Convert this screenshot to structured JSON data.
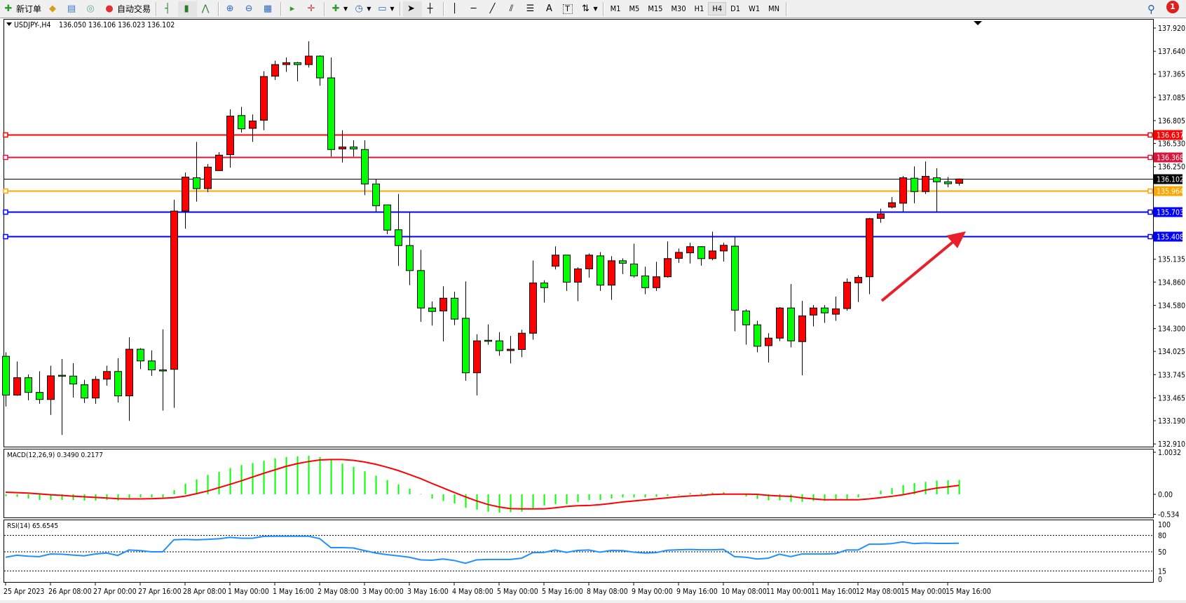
{
  "toolbar": {
    "new_order": "新订单",
    "auto_trading": "自动交易",
    "timeframes": [
      "M1",
      "M5",
      "M15",
      "M30",
      "H1",
      "H4",
      "D1",
      "W1",
      "MN"
    ],
    "active_timeframe": "H4",
    "notification_count": "1"
  },
  "chart": {
    "symbol": "USDJPY-,H4",
    "header_ohlc": "136.050 136.106 136.023 136.102",
    "macd_label": "MACD(12,26,9) 0.3490 0.2177",
    "rsi_label": "RSI(14) 65.6545",
    "colors": {
      "bull": "#ff0000",
      "bear": "#00ff00",
      "macd_hist": "#00ff00",
      "macd_signal": "#ff0000",
      "rsi": "#1e90ff"
    }
  },
  "chart_data": {
    "type": "candlestick",
    "timeframe": "H4",
    "price_ticks": [
      "137.920",
      "137.640",
      "137.365",
      "137.085",
      "136.805",
      "136.530",
      "136.250",
      "135.135",
      "134.860",
      "134.580",
      "134.300",
      "134.025",
      "133.745",
      "133.465",
      "133.190",
      "132.910"
    ],
    "price_range": [
      132.88,
      138.03
    ],
    "date_labels": [
      {
        "bar": 0,
        "text": "25 Apr 2023"
      },
      {
        "bar": 4,
        "text": "26 Apr 08:00"
      },
      {
        "bar": 8,
        "text": "27 Apr 00:00"
      },
      {
        "bar": 12,
        "text": "27 Apr 16:00"
      },
      {
        "bar": 16,
        "text": "28 Apr 08:00"
      },
      {
        "bar": 20,
        "text": "1 May 00:00"
      },
      {
        "bar": 24,
        "text": "1 May 16:00"
      },
      {
        "bar": 28,
        "text": "2 May 08:00"
      },
      {
        "bar": 32,
        "text": "3 May 00:00"
      },
      {
        "bar": 36,
        "text": "3 May 16:00"
      },
      {
        "bar": 40,
        "text": "4 May 08:00"
      },
      {
        "bar": 44,
        "text": "5 May 00:00"
      },
      {
        "bar": 48,
        "text": "5 May 16:00"
      },
      {
        "bar": 52,
        "text": "8 May 08:00"
      },
      {
        "bar": 56,
        "text": "9 May 00:00"
      },
      {
        "bar": 60,
        "text": "9 May 16:00"
      },
      {
        "bar": 64,
        "text": "10 May 08:00"
      },
      {
        "bar": 68,
        "text": "11 May 00:00"
      },
      {
        "bar": 72,
        "text": "11 May 16:00"
      },
      {
        "bar": 76,
        "text": "12 May 08:00"
      },
      {
        "bar": 80,
        "text": "15 May 00:00"
      },
      {
        "bar": 84,
        "text": "15 May 16:00"
      }
    ],
    "ohlc": [
      [
        133.966,
        134.015,
        133.361,
        133.499
      ],
      [
        133.499,
        133.904,
        133.49,
        133.708
      ],
      [
        133.708,
        133.747,
        133.436,
        133.531
      ],
      [
        133.531,
        133.786,
        133.394,
        133.446
      ],
      [
        133.446,
        133.852,
        133.26,
        133.731
      ],
      [
        133.738,
        133.933,
        133.018,
        133.728
      ],
      [
        133.728,
        133.884,
        133.469,
        133.632
      ],
      [
        133.623,
        133.682,
        133.404,
        133.463
      ],
      [
        133.463,
        133.727,
        133.394,
        133.688
      ],
      [
        133.691,
        133.852,
        133.613,
        133.783
      ],
      [
        133.783,
        133.943,
        133.41,
        133.489
      ],
      [
        133.489,
        134.195,
        133.188,
        134.051
      ],
      [
        134.051,
        134.064,
        133.812,
        133.91
      ],
      [
        133.91,
        134.038,
        133.73,
        133.802
      ],
      [
        133.802,
        134.29,
        133.312,
        133.8
      ],
      [
        133.809,
        135.852,
        133.345,
        135.715
      ],
      [
        135.715,
        136.179,
        135.503,
        136.124
      ],
      [
        136.117,
        136.549,
        135.83,
        135.986
      ],
      [
        135.986,
        136.281,
        135.944,
        136.245
      ],
      [
        136.203,
        136.425,
        136.203,
        136.389
      ],
      [
        136.395,
        136.941,
        136.238,
        136.859
      ],
      [
        136.866,
        136.97,
        136.66,
        136.706
      ],
      [
        136.712,
        136.879,
        136.549,
        136.8
      ],
      [
        136.81,
        137.399,
        136.689,
        137.336
      ],
      [
        137.34,
        137.526,
        137.294,
        137.48
      ],
      [
        137.48,
        137.565,
        137.392,
        137.503
      ],
      [
        137.503,
        137.513,
        137.278,
        137.48
      ],
      [
        137.48,
        137.761,
        137.444,
        137.582
      ],
      [
        137.582,
        137.591,
        137.225,
        137.32
      ],
      [
        137.32,
        137.565,
        136.372,
        136.457
      ],
      [
        136.464,
        136.689,
        136.3,
        136.487
      ],
      [
        136.487,
        136.568,
        136.372,
        136.464
      ],
      [
        136.457,
        136.568,
        135.908,
        136.042
      ],
      [
        136.042,
        136.101,
        135.708,
        135.78
      ],
      [
        135.79,
        135.79,
        135.437,
        135.486
      ],
      [
        135.49,
        135.921,
        135.055,
        135.3
      ],
      [
        135.3,
        135.695,
        134.823,
        134.999
      ],
      [
        134.999,
        135.248,
        134.381,
        134.548
      ],
      [
        134.548,
        134.626,
        134.336,
        134.506
      ],
      [
        134.512,
        134.81,
        134.146,
        134.666
      ],
      [
        134.666,
        134.744,
        134.342,
        134.414
      ],
      [
        134.424,
        134.868,
        133.672,
        133.767
      ],
      [
        133.767,
        134.231,
        133.495,
        134.152
      ],
      [
        134.159,
        134.349,
        134.106,
        134.155
      ],
      [
        134.152,
        134.257,
        133.973,
        134.035
      ],
      [
        134.035,
        134.211,
        133.881,
        134.051
      ],
      [
        134.048,
        134.286,
        133.956,
        134.244
      ],
      [
        134.244,
        135.12,
        134.166,
        134.849
      ],
      [
        134.849,
        134.882,
        134.613,
        134.793
      ],
      [
        135.051,
        135.29,
        135.012,
        135.185
      ],
      [
        135.185,
        135.185,
        134.754,
        134.859
      ],
      [
        134.859,
        135.038,
        134.63,
        135.019
      ],
      [
        135.019,
        135.205,
        134.914,
        135.185
      ],
      [
        135.176,
        135.221,
        134.754,
        134.823
      ],
      [
        134.823,
        135.172,
        134.646,
        135.117
      ],
      [
        135.117,
        135.146,
        134.957,
        135.087
      ],
      [
        135.078,
        135.323,
        134.914,
        134.934
      ],
      [
        134.934,
        135.045,
        134.715,
        134.793
      ],
      [
        134.793,
        135.104,
        134.754,
        134.924
      ],
      [
        134.924,
        135.349,
        134.914,
        135.143
      ],
      [
        135.146,
        135.264,
        135.091,
        135.218
      ],
      [
        135.212,
        135.333,
        135.084,
        135.287
      ],
      [
        135.287,
        135.293,
        135.058,
        135.143
      ],
      [
        135.143,
        135.467,
        135.123,
        135.235
      ],
      [
        135.235,
        135.333,
        135.107,
        135.303
      ],
      [
        135.293,
        135.404,
        134.267,
        134.522
      ],
      [
        134.512,
        134.532,
        134.107,
        134.345
      ],
      [
        134.345,
        134.394,
        134.015,
        134.087
      ],
      [
        134.094,
        134.244,
        133.891,
        134.185
      ],
      [
        134.185,
        134.558,
        134.149,
        134.548
      ],
      [
        134.548,
        134.836,
        134.074,
        134.152
      ],
      [
        134.143,
        134.633,
        133.737,
        134.453
      ],
      [
        134.463,
        134.584,
        134.326,
        134.548
      ],
      [
        134.548,
        134.584,
        134.368,
        134.489
      ],
      [
        134.473,
        134.685,
        134.394,
        134.538
      ],
      [
        134.541,
        134.904,
        134.515,
        134.859
      ],
      [
        134.852,
        134.943,
        134.62,
        134.917
      ],
      [
        134.924,
        135.633,
        134.715,
        135.624
      ],
      [
        135.627,
        135.744,
        135.574,
        135.682
      ],
      [
        135.764,
        135.885,
        135.748,
        135.816
      ],
      [
        135.81,
        136.137,
        135.708,
        136.117
      ],
      [
        136.111,
        136.254,
        135.81,
        135.95
      ],
      [
        135.95,
        136.313,
        135.921,
        136.134
      ],
      [
        136.117,
        136.232,
        135.708,
        136.068
      ],
      [
        136.068,
        136.127,
        136.003,
        136.045
      ],
      [
        136.05,
        136.106,
        136.023,
        136.102
      ]
    ],
    "horizontal_lines": [
      {
        "price": "136.637",
        "color": "#ff0000"
      },
      {
        "price": "136.368",
        "color": "#dc143c"
      },
      {
        "price": "135.964",
        "color": "#ffa500"
      },
      {
        "price": "135.703",
        "color": "#0000ff"
      },
      {
        "price": "135.408",
        "color": "#0000ff"
      }
    ],
    "bid": {
      "price": "136.102",
      "color": "#000000"
    },
    "annotation_arrow": {
      "color": "#e8202a",
      "direction": "up-right"
    },
    "macd": {
      "ticks": [
        "1.0032",
        "0.00",
        "-0.534"
      ],
      "range": [
        -0.57,
        1.1
      ],
      "histogram": [
        -0.045,
        -0.06,
        -0.1,
        -0.136,
        -0.136,
        -0.136,
        -0.136,
        -0.151,
        -0.151,
        -0.136,
        -0.151,
        -0.09,
        -0.075,
        -0.075,
        -0.075,
        0.101,
        0.256,
        0.362,
        0.472,
        0.543,
        0.638,
        0.709,
        0.759,
        0.814,
        0.874,
        0.905,
        0.92,
        0.935,
        0.905,
        0.834,
        0.744,
        0.668,
        0.558,
        0.452,
        0.347,
        0.241,
        0.136,
        0.01,
        -0.101,
        -0.161,
        -0.221,
        -0.327,
        -0.372,
        -0.422,
        -0.442,
        -0.432,
        -0.422,
        -0.352,
        -0.271,
        -0.236,
        -0.236,
        -0.191,
        -0.136,
        -0.136,
        -0.101,
        -0.075,
        -0.075,
        -0.075,
        -0.06,
        -0.04,
        -0.015,
        0.03,
        0.03,
        0.04,
        0.05,
        0.0,
        -0.05,
        -0.111,
        -0.146,
        -0.146,
        -0.181,
        -0.181,
        -0.161,
        -0.161,
        -0.136,
        -0.126,
        -0.075,
        0.01,
        0.09,
        0.151,
        0.226,
        0.271,
        0.302,
        0.332,
        0.34,
        0.349
      ],
      "signal": [
        0.05,
        0.04,
        0.03,
        0.01,
        -0.01,
        -0.025,
        -0.045,
        -0.06,
        -0.075,
        -0.09,
        -0.106,
        -0.111,
        -0.111,
        -0.106,
        -0.095,
        -0.08,
        -0.045,
        0.015,
        0.08,
        0.161,
        0.241,
        0.327,
        0.417,
        0.508,
        0.593,
        0.678,
        0.744,
        0.794,
        0.834,
        0.844,
        0.844,
        0.824,
        0.784,
        0.729,
        0.658,
        0.578,
        0.482,
        0.382,
        0.266,
        0.156,
        0.045,
        -0.06,
        -0.161,
        -0.246,
        -0.307,
        -0.347,
        -0.352,
        -0.352,
        -0.352,
        -0.327,
        -0.296,
        -0.276,
        -0.271,
        -0.251,
        -0.221,
        -0.186,
        -0.161,
        -0.136,
        -0.111,
        -0.085,
        -0.06,
        -0.04,
        -0.025,
        -0.005,
        0.005,
        0.005,
        0.005,
        0.0,
        -0.025,
        -0.04,
        -0.05,
        -0.085,
        -0.111,
        -0.131,
        -0.131,
        -0.131,
        -0.131,
        -0.111,
        -0.08,
        -0.05,
        -0.01,
        0.04,
        0.101,
        0.151,
        0.181,
        0.2177
      ]
    },
    "rsi": {
      "ticks": [
        "100",
        "80",
        "50",
        "15",
        "0"
      ],
      "levels": [
        80,
        50,
        15
      ],
      "values": [
        40.1,
        43.8,
        42.0,
        41.2,
        46.0,
        45.6,
        44.1,
        42.7,
        46.0,
        47.8,
        43.4,
        53.3,
        52.2,
        50.0,
        50.0,
        72.0,
        72.7,
        72.0,
        72.7,
        73.8,
        76.4,
        74.9,
        74.9,
        78.2,
        78.6,
        78.6,
        78.6,
        78.6,
        74.2,
        57.7,
        57.7,
        57.0,
        52.2,
        47.8,
        44.9,
        42.7,
        40.1,
        35.3,
        34.6,
        36.8,
        34.2,
        29.1,
        35.3,
        36.1,
        36.1,
        36.1,
        38.3,
        48.5,
        48.9,
        53.3,
        48.9,
        52.6,
        53.3,
        49.3,
        52.6,
        52.2,
        49.3,
        47.8,
        48.5,
        52.9,
        53.7,
        54.4,
        53.7,
        53.7,
        54.4,
        41.2,
        40.1,
        36.8,
        38.3,
        45.6,
        41.2,
        46.0,
        46.0,
        46.0,
        46.7,
        53.3,
        53.3,
        63.9,
        63.9,
        65.0,
        68.3,
        65.0,
        66.1,
        65.4,
        65.4,
        65.6545
      ]
    }
  }
}
